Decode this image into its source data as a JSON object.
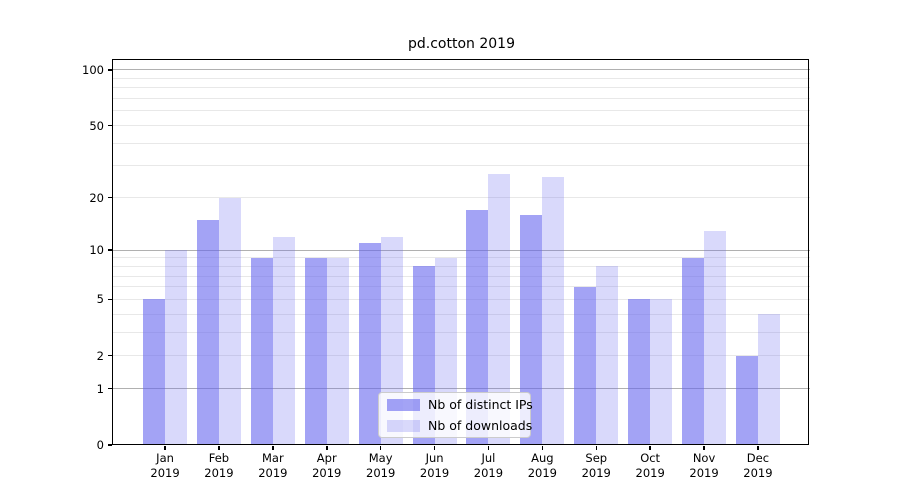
{
  "title": "pd.cotton 2019",
  "chart_data": {
    "type": "bar",
    "title": "pd.cotton 2019",
    "xlabel": "",
    "ylabel": "",
    "categories": [
      "Jan",
      "Feb",
      "Mar",
      "Apr",
      "May",
      "Jun",
      "Jul",
      "Aug",
      "Sep",
      "Oct",
      "Nov",
      "Dec"
    ],
    "x_year_label": "2019",
    "series": [
      {
        "name": "Nb of distinct IPs",
        "values": [
          5,
          15,
          9,
          9,
          11,
          8,
          17,
          16,
          6,
          5,
          9,
          2
        ]
      },
      {
        "name": "Nb of downloads",
        "values": [
          10,
          20,
          12,
          9,
          12,
          9,
          27,
          26,
          8,
          5,
          13,
          4
        ]
      }
    ],
    "yscale": "log1p",
    "ylim": [
      0,
      113
    ],
    "y_tick_values": [
      100,
      50,
      20,
      10,
      5,
      2,
      1,
      0
    ],
    "y_tick_labels": [
      "100",
      "50",
      "20",
      "10",
      "5",
      "2",
      "1",
      "0"
    ],
    "y_major_gridlines": [
      1,
      10,
      100
    ],
    "y_minor_gridlines": [
      2,
      3,
      4,
      5,
      6,
      7,
      8,
      9,
      20,
      30,
      40,
      50,
      60,
      70,
      80,
      90
    ],
    "grid": true,
    "legend_position": "lower center"
  },
  "colors": {
    "bar_distinct_ips": "rgba(102,102,238,0.6)",
    "bar_downloads": "rgba(102,102,238,0.25)",
    "grid_major": "#b0b0b0",
    "grid_minor": "#e8e8e8",
    "axis": "#000000",
    "legend_border": "#cccccc",
    "background": "#ffffff"
  },
  "legend": {
    "items": [
      {
        "label": "Nb of distinct IPs",
        "color": "rgba(102,102,238,0.6)"
      },
      {
        "label": "Nb of downloads",
        "color": "rgba(102,102,238,0.25)"
      }
    ]
  }
}
